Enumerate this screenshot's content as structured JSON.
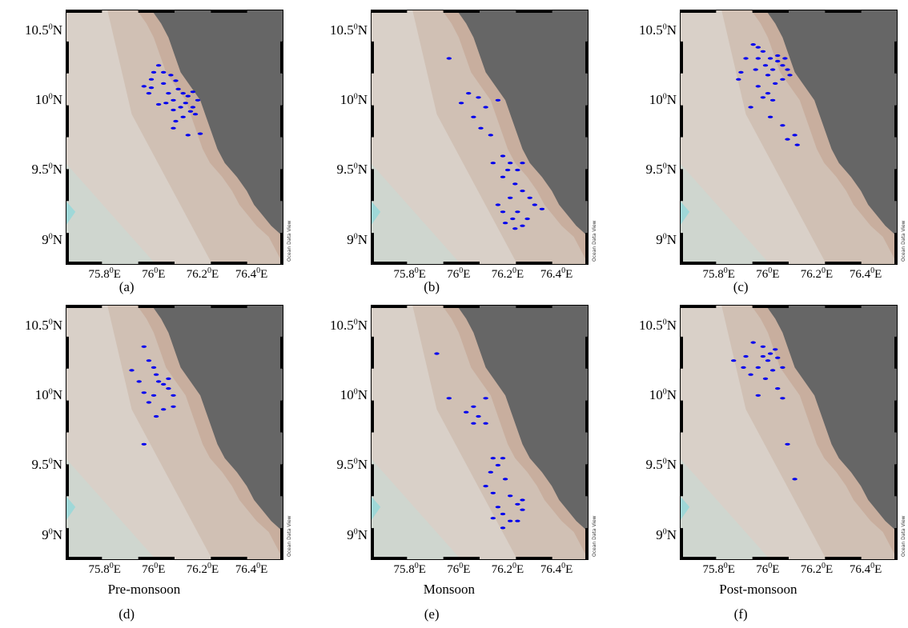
{
  "figure": {
    "watermark": "Ocean Data View",
    "x_ticks": [
      "75.8",
      "76",
      "76.2",
      "76.4"
    ],
    "x_hemisphere": "E",
    "y_ticks": [
      "10.5",
      "10",
      "9.5",
      "9"
    ],
    "y_hemisphere": "N",
    "degree_mark": "0",
    "colors": {
      "land": "#666666",
      "sea_light": "#d9d0c8",
      "sea_mid": "#d0c0b4",
      "shelf": "#c8ae9e",
      "deep": "#cfd6cf",
      "cyan": "#9fd8d8",
      "points": "#0000ee",
      "frame": "#000000"
    }
  },
  "panels": [
    {
      "label": "(a)",
      "season": "",
      "points": [
        [
          76.06,
          10.25
        ],
        [
          76.0,
          10.1
        ],
        [
          76.03,
          10.15
        ],
        [
          76.08,
          10.12
        ],
        [
          76.1,
          10.05
        ],
        [
          76.12,
          10.0
        ],
        [
          76.14,
          10.08
        ],
        [
          76.16,
          10.05
        ],
        [
          76.18,
          10.03
        ],
        [
          76.2,
          10.06
        ],
        [
          76.17,
          9.98
        ],
        [
          76.15,
          9.95
        ],
        [
          76.19,
          9.92
        ],
        [
          76.21,
          9.9
        ],
        [
          76.12,
          9.93
        ],
        [
          76.09,
          9.98
        ],
        [
          76.04,
          10.2
        ],
        [
          76.02,
          10.05
        ],
        [
          76.11,
          10.18
        ],
        [
          76.18,
          9.75
        ],
        [
          76.23,
          9.76
        ],
        [
          76.13,
          9.85
        ],
        [
          76.16,
          9.88
        ],
        [
          76.22,
          10.0
        ],
        [
          76.06,
          9.97
        ],
        [
          76.08,
          10.2
        ],
        [
          76.13,
          10.14
        ],
        [
          76.03,
          10.09
        ],
        [
          76.2,
          9.95
        ],
        [
          76.12,
          9.8
        ]
      ]
    },
    {
      "label": "(b)",
      "season": "",
      "points": [
        [
          76.0,
          10.3
        ],
        [
          76.05,
          9.98
        ],
        [
          76.12,
          10.02
        ],
        [
          76.2,
          10.0
        ],
        [
          76.15,
          9.95
        ],
        [
          76.1,
          9.88
        ],
        [
          76.13,
          9.8
        ],
        [
          76.17,
          9.75
        ],
        [
          76.08,
          10.05
        ],
        [
          76.22,
          9.6
        ],
        [
          76.25,
          9.55
        ],
        [
          76.28,
          9.5
        ],
        [
          76.22,
          9.45
        ],
        [
          76.27,
          9.4
        ],
        [
          76.3,
          9.35
        ],
        [
          76.25,
          9.3
        ],
        [
          76.2,
          9.25
        ],
        [
          76.28,
          9.2
        ],
        [
          76.32,
          9.15
        ],
        [
          76.26,
          9.15
        ],
        [
          76.3,
          9.1
        ],
        [
          76.22,
          9.2
        ],
        [
          76.35,
          9.25
        ],
        [
          76.18,
          9.55
        ],
        [
          76.24,
          9.5
        ],
        [
          76.3,
          9.55
        ],
        [
          76.33,
          9.3
        ],
        [
          76.38,
          9.22
        ],
        [
          76.27,
          9.08
        ],
        [
          76.23,
          9.12
        ]
      ]
    },
    {
      "label": "(c)",
      "season": "",
      "points": [
        [
          75.98,
          10.4
        ],
        [
          76.02,
          10.35
        ],
        [
          76.05,
          10.3
        ],
        [
          76.08,
          10.28
        ],
        [
          76.1,
          10.25
        ],
        [
          76.06,
          10.22
        ],
        [
          76.03,
          10.25
        ],
        [
          76.0,
          10.3
        ],
        [
          75.95,
          10.3
        ],
        [
          75.93,
          10.2
        ],
        [
          76.04,
          10.18
        ],
        [
          76.1,
          10.15
        ],
        [
          76.12,
          10.22
        ],
        [
          76.0,
          10.1
        ],
        [
          76.02,
          10.02
        ],
        [
          76.06,
          10.0
        ],
        [
          75.97,
          9.95
        ],
        [
          76.05,
          9.88
        ],
        [
          76.1,
          9.82
        ],
        [
          76.15,
          9.75
        ],
        [
          76.16,
          9.68
        ],
        [
          76.12,
          9.72
        ],
        [
          76.08,
          10.32
        ],
        [
          76.0,
          10.38
        ],
        [
          76.04,
          10.05
        ],
        [
          75.92,
          10.15
        ],
        [
          76.07,
          10.12
        ],
        [
          76.11,
          10.3
        ],
        [
          75.99,
          10.22
        ],
        [
          76.13,
          10.18
        ]
      ]
    },
    {
      "label": "(d)",
      "season": "Pre-monsoon",
      "points": [
        [
          76.0,
          10.35
        ],
        [
          76.02,
          10.25
        ],
        [
          76.05,
          10.15
        ],
        [
          76.08,
          10.08
        ],
        [
          76.1,
          10.05
        ],
        [
          76.04,
          10.0
        ],
        [
          76.0,
          10.02
        ],
        [
          76.06,
          10.1
        ],
        [
          76.1,
          10.12
        ],
        [
          75.95,
          10.18
        ],
        [
          76.02,
          9.95
        ],
        [
          76.08,
          9.9
        ],
        [
          76.12,
          9.92
        ],
        [
          76.05,
          9.85
        ],
        [
          76.0,
          9.65
        ],
        [
          76.12,
          10.0
        ],
        [
          75.98,
          10.1
        ],
        [
          76.04,
          10.2
        ]
      ]
    },
    {
      "label": "(e)",
      "season": "Monsoon",
      "points": [
        [
          75.95,
          10.3
        ],
        [
          76.0,
          9.98
        ],
        [
          76.07,
          9.88
        ],
        [
          76.1,
          9.92
        ],
        [
          76.15,
          9.98
        ],
        [
          76.12,
          9.85
        ],
        [
          76.15,
          9.8
        ],
        [
          76.18,
          9.55
        ],
        [
          76.2,
          9.5
        ],
        [
          76.22,
          9.55
        ],
        [
          76.17,
          9.45
        ],
        [
          76.23,
          9.4
        ],
        [
          76.18,
          9.3
        ],
        [
          76.25,
          9.28
        ],
        [
          76.28,
          9.22
        ],
        [
          76.22,
          9.15
        ],
        [
          76.18,
          9.12
        ],
        [
          76.25,
          9.1
        ],
        [
          76.22,
          9.05
        ],
        [
          76.3,
          9.18
        ],
        [
          76.2,
          9.2
        ],
        [
          76.15,
          9.35
        ],
        [
          76.3,
          9.25
        ],
        [
          76.28,
          9.1
        ],
        [
          76.1,
          9.8
        ]
      ]
    },
    {
      "label": "(f)",
      "season": "Post-monsoon",
      "points": [
        [
          75.98,
          10.38
        ],
        [
          76.02,
          10.35
        ],
        [
          76.05,
          10.3
        ],
        [
          76.08,
          10.27
        ],
        [
          76.04,
          10.25
        ],
        [
          76.0,
          10.2
        ],
        [
          75.95,
          10.28
        ],
        [
          75.9,
          10.25
        ],
        [
          76.06,
          10.18
        ],
        [
          76.1,
          10.2
        ],
        [
          76.03,
          10.12
        ],
        [
          76.08,
          10.05
        ],
        [
          76.0,
          10.0
        ],
        [
          76.1,
          9.98
        ],
        [
          76.12,
          9.65
        ],
        [
          76.15,
          9.4
        ],
        [
          76.07,
          10.33
        ],
        [
          75.97,
          10.15
        ],
        [
          76.02,
          10.28
        ],
        [
          75.94,
          10.2
        ]
      ]
    }
  ]
}
